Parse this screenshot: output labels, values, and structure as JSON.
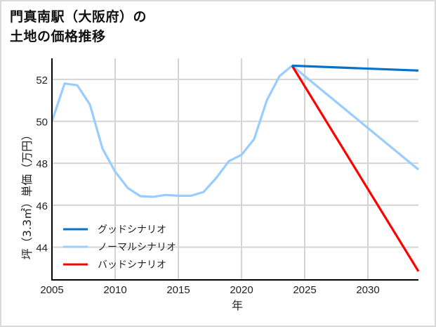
{
  "title": {
    "line1": "門真南駅（大阪府）の",
    "line2": "土地の価格推移"
  },
  "chart_data": {
    "type": "line",
    "title": "門真南駅（大阪府）の土地の価格推移",
    "xlabel": "年",
    "ylabel": "坪（3.3㎡）単価（万円）",
    "xlim": [
      2005,
      2034
    ],
    "ylim": [
      42.44,
      53.0
    ],
    "xticks": [
      2005,
      2010,
      2015,
      2020,
      2025,
      2030
    ],
    "yticks": [
      44,
      46,
      48,
      50,
      52
    ],
    "grid": true,
    "legend_position": "lower left",
    "series": [
      {
        "name": "グッドシナリオ",
        "color": "#0a72c6",
        "x": [
          2024,
          2034
        ],
        "values": [
          52.65,
          52.42
        ]
      },
      {
        "name": "ノーマルシナリオ",
        "color": "#99ccff",
        "x": [
          2005,
          2006,
          2007,
          2008,
          2009,
          2010,
          2011,
          2012,
          2013,
          2014,
          2015,
          2016,
          2017,
          2018,
          2019,
          2020,
          2021,
          2022,
          2023,
          2024,
          2034
        ],
        "values": [
          50.0,
          51.8,
          51.72,
          50.8,
          48.7,
          47.6,
          46.82,
          46.43,
          46.4,
          46.49,
          46.45,
          46.45,
          46.63,
          47.3,
          48.1,
          48.4,
          49.15,
          51.0,
          52.15,
          52.65,
          47.7
        ]
      },
      {
        "name": "バッドシナリオ",
        "color": "#ff0000",
        "x": [
          2024,
          2034
        ],
        "values": [
          52.65,
          42.85
        ]
      }
    ]
  }
}
